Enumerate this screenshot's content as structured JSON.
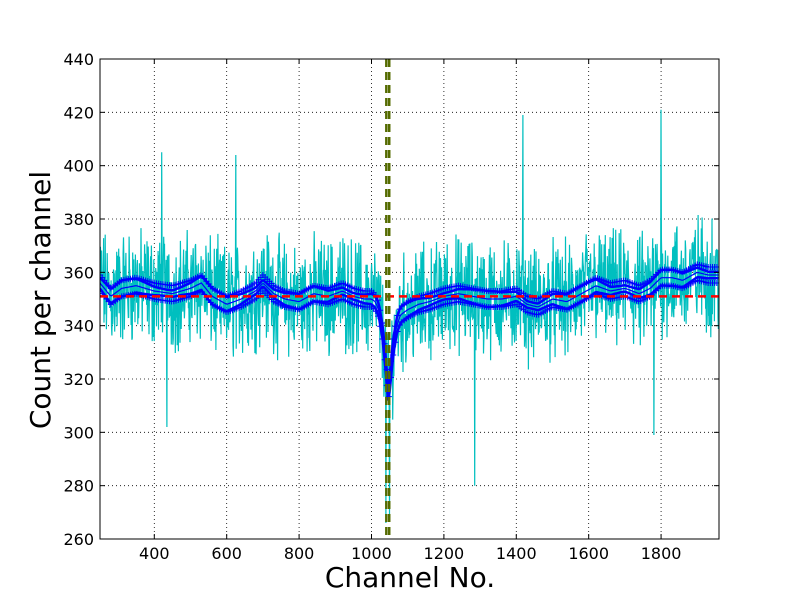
{
  "chart_data": {
    "type": "line",
    "xlabel": "Channel No.",
    "ylabel": "Count per channel",
    "xlim": [
      250,
      1960
    ],
    "ylim": [
      260,
      440
    ],
    "x_ticks": [
      400,
      600,
      800,
      1000,
      1200,
      1400,
      1600,
      1800
    ],
    "y_ticks": [
      260,
      280,
      300,
      320,
      340,
      360,
      380,
      400,
      420,
      440
    ],
    "grid": true,
    "colors": {
      "raw": "#00bfbf",
      "fit": "#0000ff",
      "baseline": "#ff0000",
      "marker_line": "#556b00",
      "frame": "#000000"
    },
    "series": [
      {
        "style": "noisy-line",
        "description_source": "raw counts per channel",
        "x_range": [
          250,
          1960
        ],
        "baseline_level": 351,
        "noise_amplitude": 16,
        "dip": {
          "center": 1045,
          "depth": 50,
          "width": 18
        },
        "spikes": [
          {
            "x": 420,
            "y": 405
          },
          {
            "x": 435,
            "y": 302
          },
          {
            "x": 625,
            "y": 404
          },
          {
            "x": 1040,
            "y": 266
          },
          {
            "x": 1050,
            "y": 268
          },
          {
            "x": 1285,
            "y": 280
          },
          {
            "x": 1418,
            "y": 419
          },
          {
            "x": 1800,
            "y": 421
          },
          {
            "x": 1780,
            "y": 299
          }
        ]
      },
      {
        "style": "smoothed-band-with-markers",
        "x": [
          250,
          280,
          310,
          350,
          400,
          450,
          500,
          530,
          560,
          600,
          640,
          680,
          700,
          730,
          760,
          800,
          840,
          880,
          920,
          950,
          980,
          1000,
          1010,
          1020,
          1030,
          1040,
          1045,
          1050,
          1060,
          1070,
          1080,
          1100,
          1130,
          1160,
          1200,
          1240,
          1280,
          1320,
          1360,
          1400,
          1430,
          1460,
          1500,
          1540,
          1580,
          1620,
          1660,
          1700,
          1740,
          1770,
          1800,
          1830,
          1860,
          1900,
          1930,
          1960
        ],
        "y": [
          356,
          351,
          354,
          355,
          353,
          352,
          354,
          356,
          351,
          348,
          350,
          353,
          356,
          352,
          350,
          349,
          352,
          351,
          353,
          351,
          350,
          350,
          349,
          346,
          338,
          325,
          314,
          318,
          332,
          340,
          344,
          346,
          348,
          349,
          351,
          352,
          351,
          350,
          350,
          351,
          348,
          347,
          350,
          349,
          352,
          355,
          353,
          354,
          352,
          354,
          358,
          358,
          357,
          360,
          359,
          359
        ],
        "band_halfwidth": 3
      },
      {
        "style": "dashed-horizontal",
        "y": 351
      },
      {
        "style": "dashed-vertical-pair",
        "x": [
          1041,
          1049
        ]
      }
    ]
  }
}
